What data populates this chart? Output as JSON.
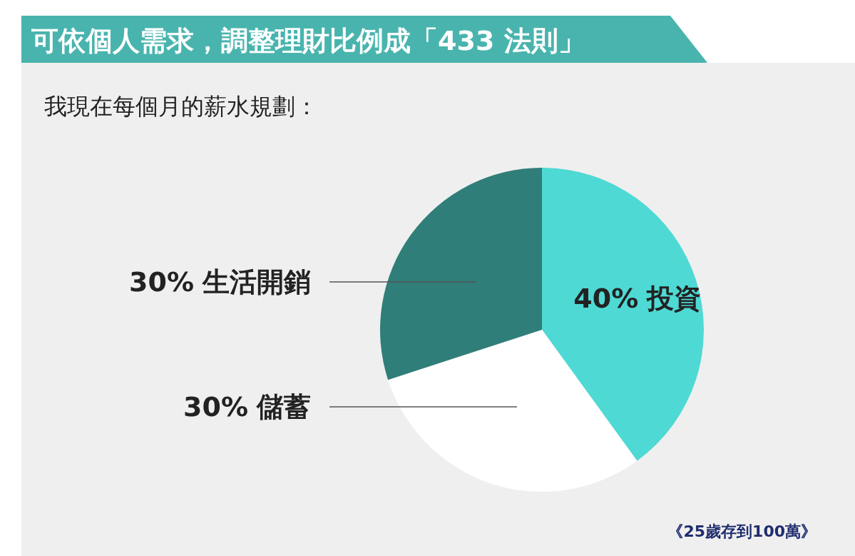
{
  "chart_data": {
    "type": "pie",
    "title": "可依個人需求，調整理財比例成「433 法則」",
    "subtitle": "我現在每個月的薪水規劃：",
    "categories": [
      "投資",
      "儲蓄",
      "生活開銷"
    ],
    "values": [
      40,
      30,
      30
    ],
    "value_labels": [
      "40%",
      "30%",
      "30%"
    ],
    "colors": [
      "#4fd9d4",
      "#ffffff",
      "#2f7e79"
    ],
    "annotations": [
      "《25歲存到100萬》"
    ]
  }
}
